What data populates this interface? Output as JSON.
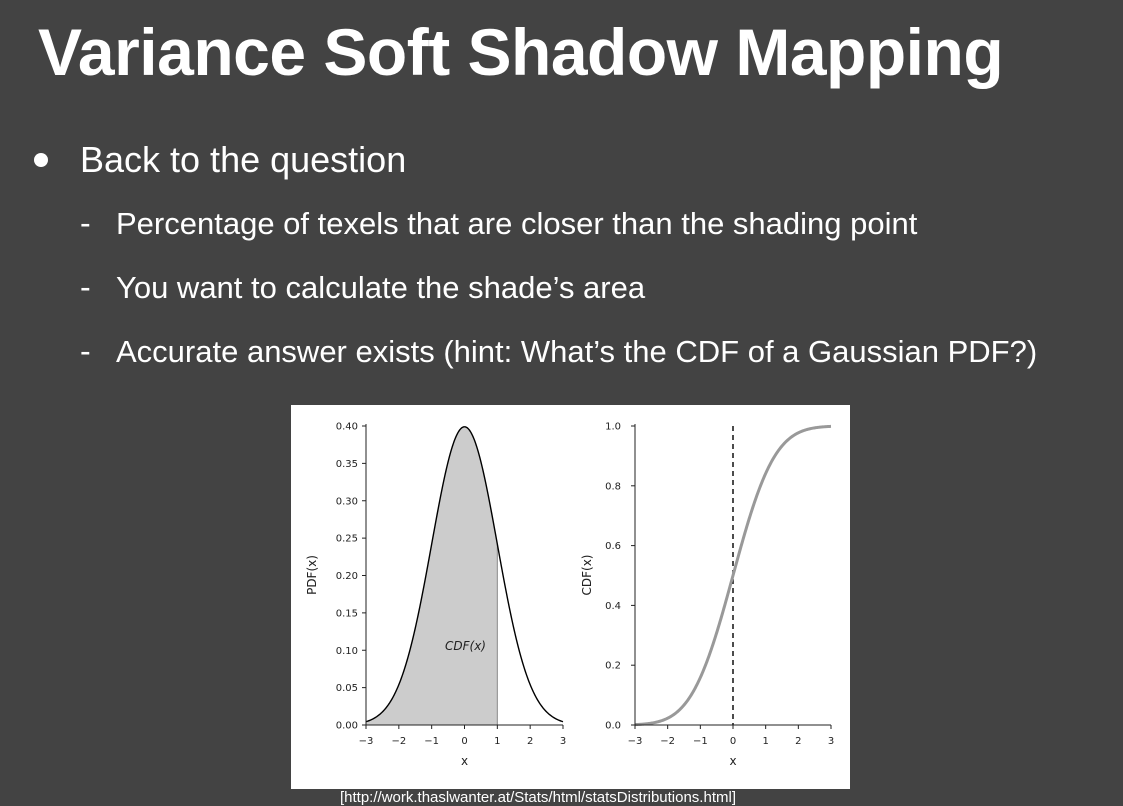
{
  "title": "Variance Soft Shadow Mapping",
  "bullet": "Back to the question",
  "sub_bullets": [
    "Percentage of texels that are closer than the shading point",
    "You want to calculate the shade’s area",
    "Accurate answer exists (hint: What’s the CDF of a Gaussian PDF?)"
  ],
  "sub_marker": "-",
  "figure": {
    "left": {
      "ylabel": "PDF(x)",
      "xlabel": "x",
      "yticks": [
        "0.00",
        "0.05",
        "0.10",
        "0.15",
        "0.20",
        "0.25",
        "0.30",
        "0.35",
        "0.40"
      ],
      "xticks": [
        "−3",
        "−2",
        "−1",
        "0",
        "1",
        "2",
        "3"
      ],
      "annotation": "CDF(x)",
      "shaded_up_to_x": 1
    },
    "right": {
      "ylabel": "CDF(x)",
      "xlabel": "x",
      "yticks": [
        "0.0",
        "0.2",
        "0.4",
        "0.6",
        "0.8",
        "1.0"
      ],
      "xticks": [
        "−3",
        "−2",
        "−1",
        "0",
        "1",
        "2",
        "3"
      ],
      "marker_x": 0
    },
    "colors": {
      "fill": "#cccccc",
      "pdf_line": "#000000",
      "cdf_line": "#999999"
    }
  },
  "caption": "[http://work.thaslwanter.at/Stats/html/statsDistributions.html]"
}
